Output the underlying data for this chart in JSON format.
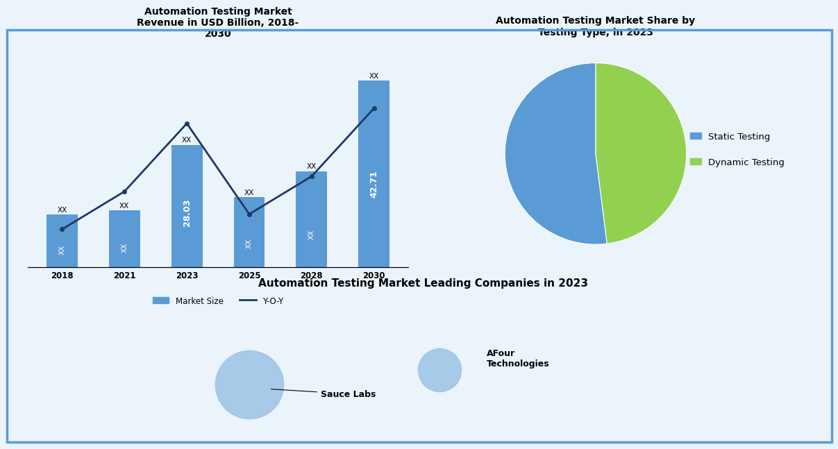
{
  "bar_chart": {
    "title": "Automation Testing Market\nRevenue in USD Billion, 2018-\n2030",
    "years": [
      "2018",
      "2021",
      "2023",
      "2025",
      "2028",
      "2030"
    ],
    "bar_values": [
      12,
      13,
      28.03,
      16,
      22,
      42.71
    ],
    "line_values": [
      5,
      10,
      19,
      7,
      12,
      21
    ],
    "bar_color": "#5B9BD5",
    "line_color": "#1F3864",
    "bar_labels": [
      "XX",
      "XX",
      "28.03",
      "XX",
      "XX",
      "42.71"
    ],
    "top_labels": [
      "XX",
      "XX",
      "XX",
      "XX",
      "XX",
      "XX"
    ],
    "legend_bar": "Market Size",
    "legend_line": "Y-O-Y"
  },
  "pie_chart": {
    "title": "Automation Testing Market Share by\nTesting Type, in 2023",
    "labels": [
      "Static Testing",
      "Dynamic Testing"
    ],
    "values": [
      52,
      48
    ],
    "colors": [
      "#5B9BD5",
      "#92D050"
    ],
    "startangle": 90
  },
  "bubble_chart": {
    "title": "Automation Testing Market Leading Companies in 2023",
    "companies": [
      "Sauce Labs",
      "AFour\nTechnologies"
    ],
    "x": [
      0.28,
      0.52
    ],
    "y": [
      0.35,
      0.45
    ],
    "sizes": [
      5000,
      2000
    ],
    "color": "#9DC3E6"
  },
  "background_color": "#EBF3FB",
  "border_color": "#5B9BD5"
}
